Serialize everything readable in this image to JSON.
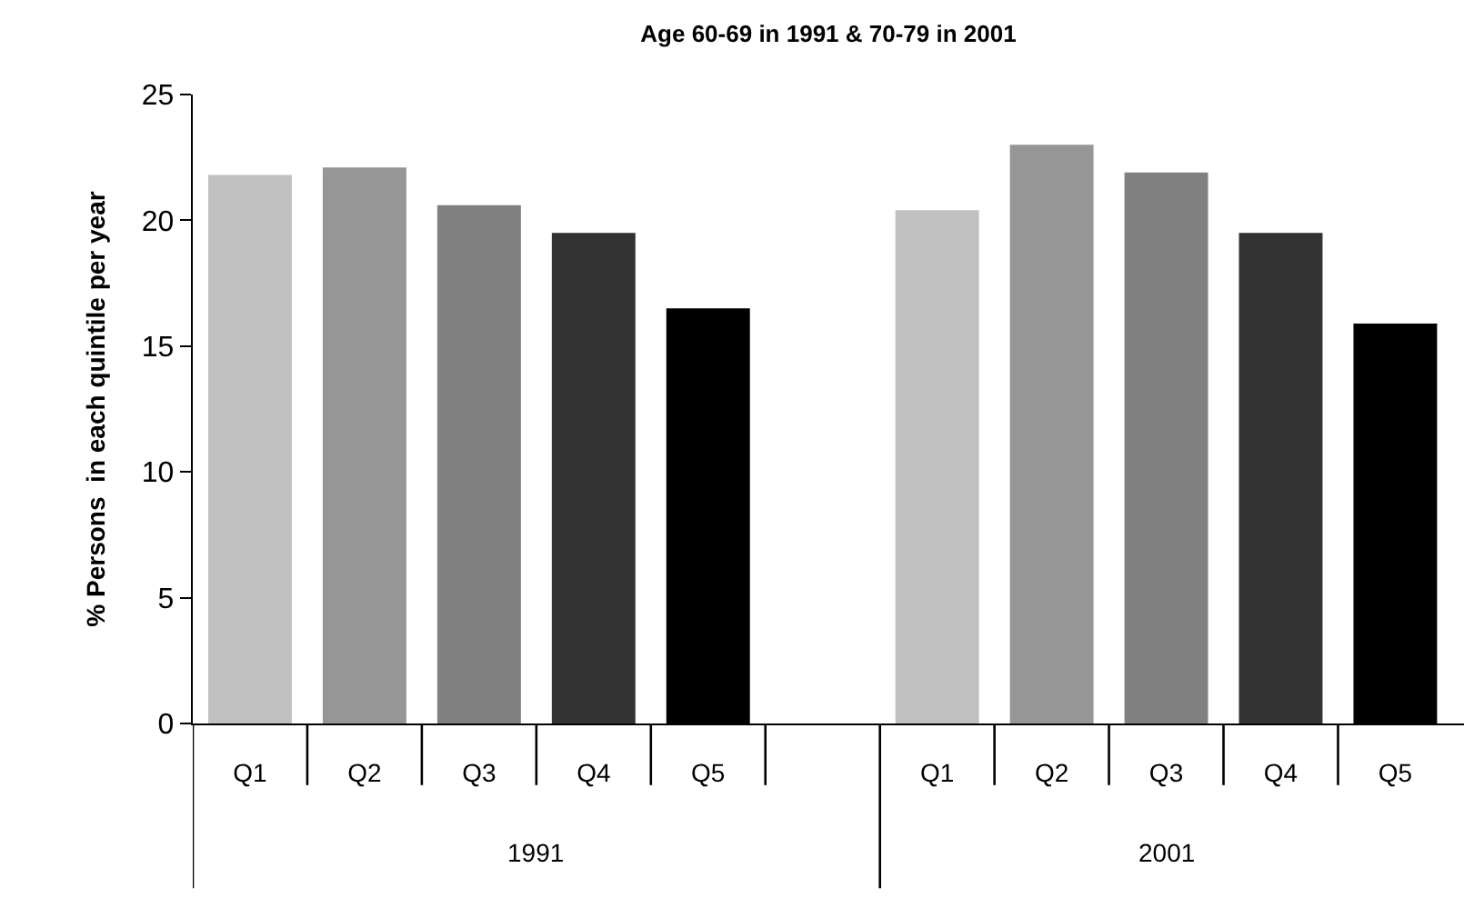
{
  "chart_data": {
    "type": "bar",
    "title": "Age 60-69 in 1991 & 70-79 in 2001",
    "ylabel": "% Persons  in each quintile per year",
    "categories": [
      "Q1",
      "Q2",
      "Q3",
      "Q4",
      "Q5",
      null,
      "Q1",
      "Q2",
      "Q3",
      "Q4",
      "Q5"
    ],
    "values": [
      21.8,
      22.1,
      20.6,
      19.5,
      16.5,
      null,
      20.4,
      23.0,
      21.9,
      19.5,
      15.9
    ],
    "colors": [
      "#c0c0c0",
      "#969696",
      "#808080",
      "#333333",
      "#000000",
      null,
      "#c0c0c0",
      "#969696",
      "#808080",
      "#333333",
      "#000000"
    ],
    "annotations": [
      "1991",
      "2001"
    ],
    "ylim": [
      0,
      25
    ],
    "yticks": [
      0,
      5,
      10,
      15,
      20,
      25
    ]
  }
}
